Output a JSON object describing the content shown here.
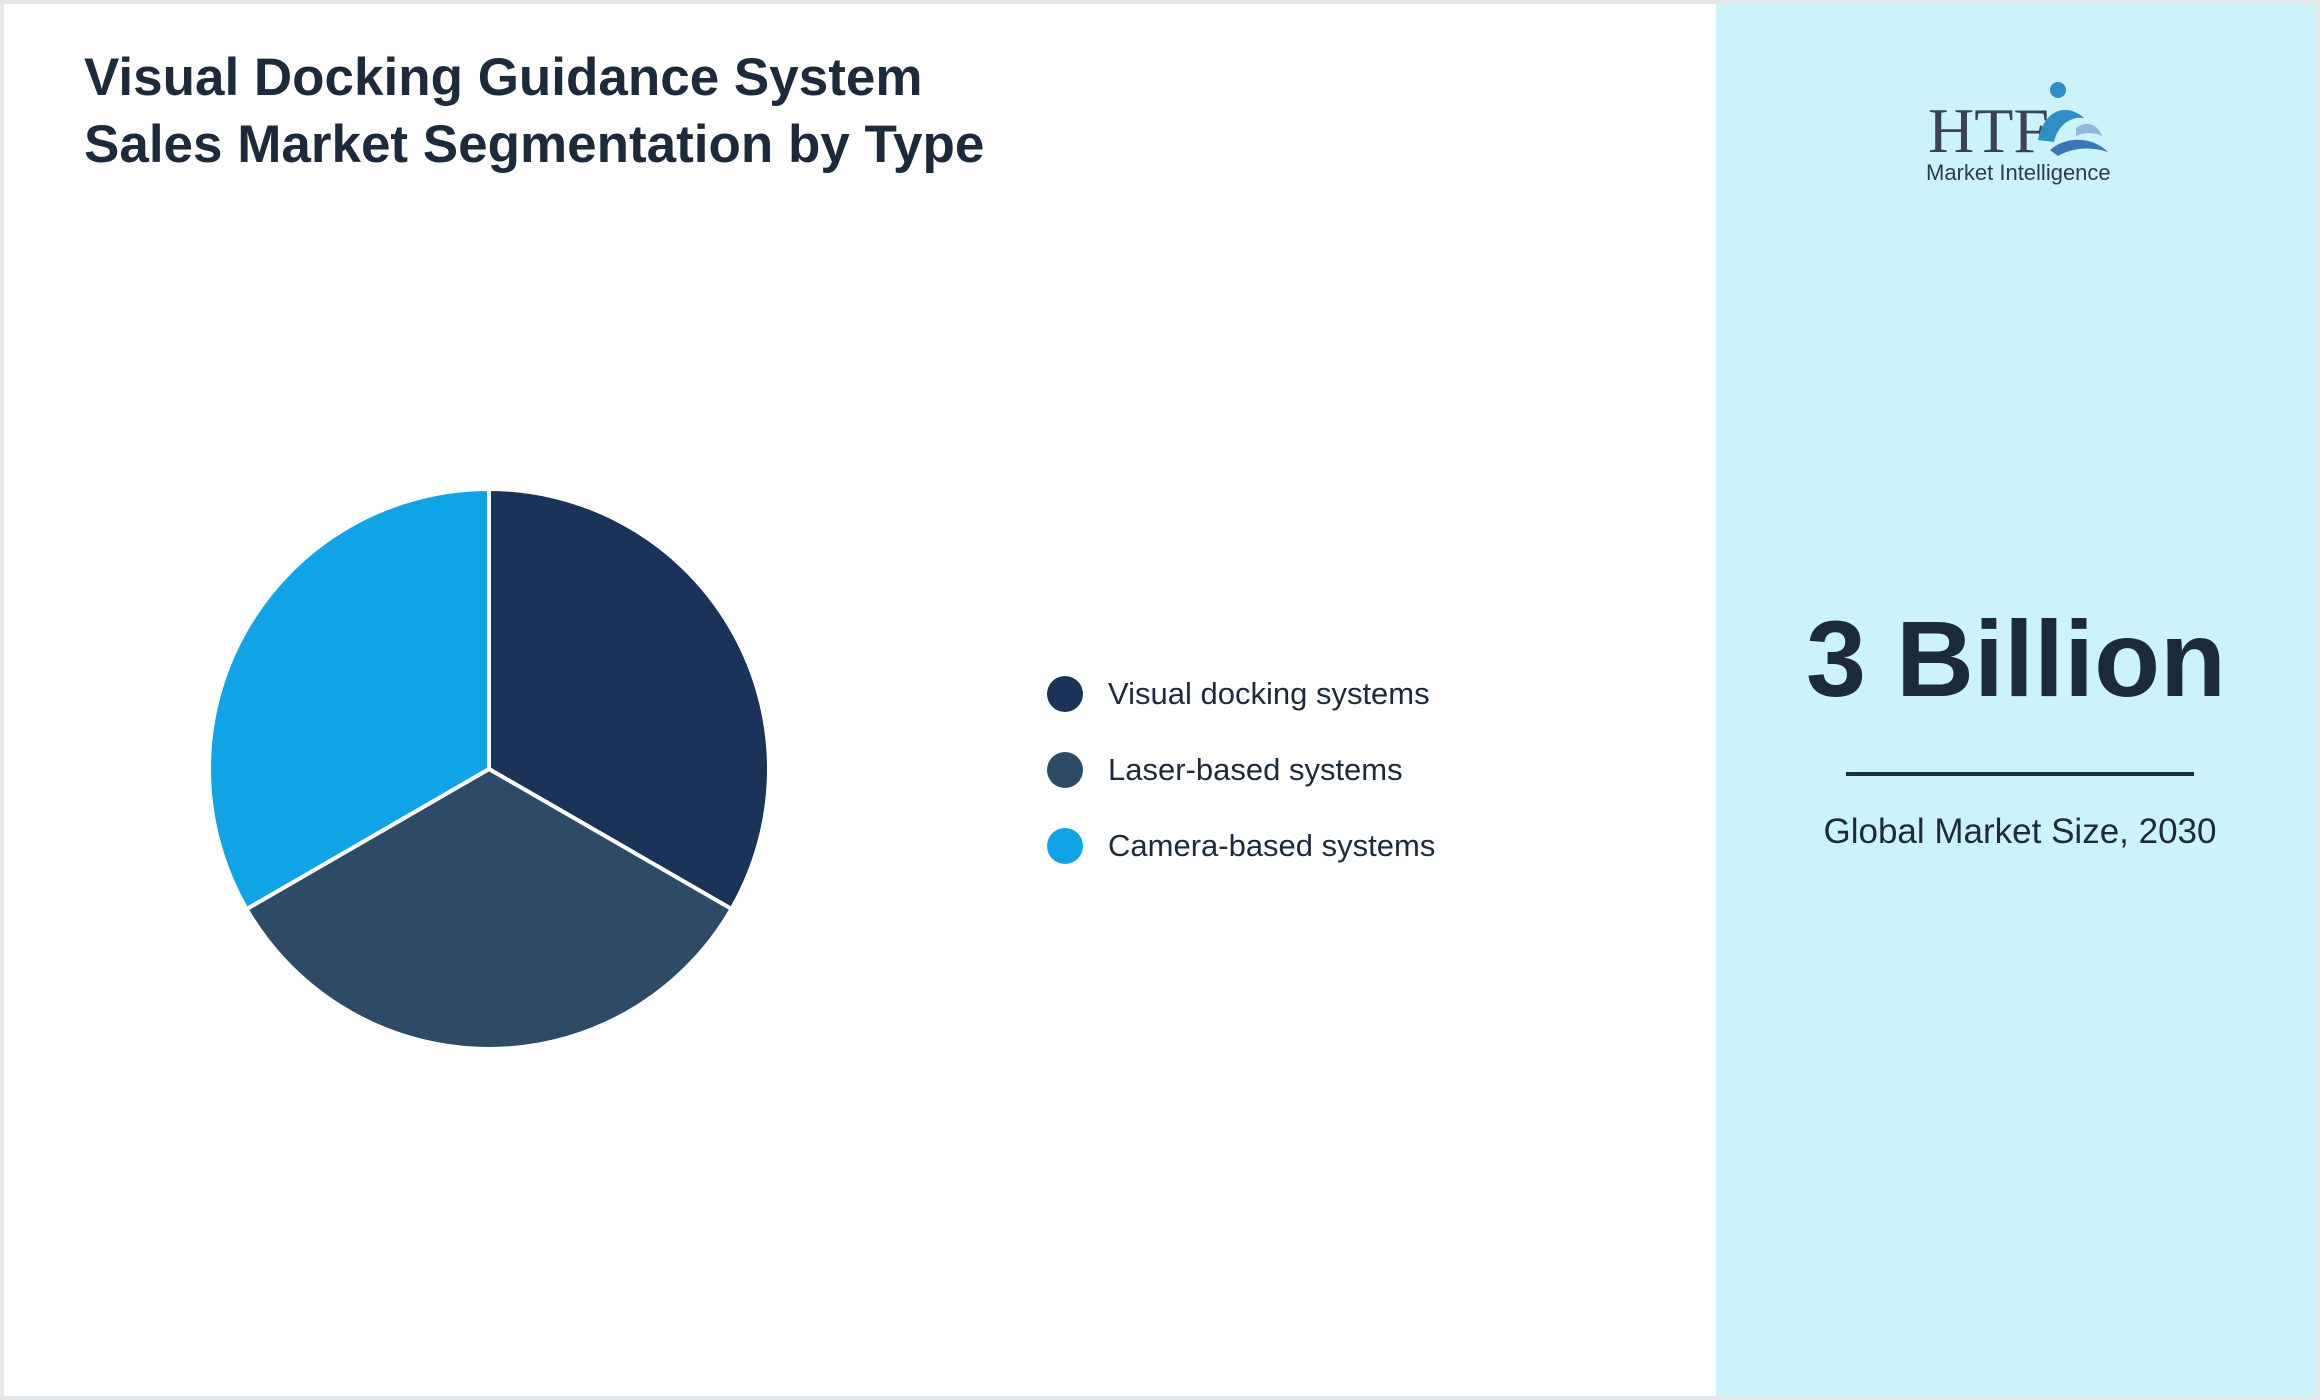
{
  "title": "Visual Docking Guidance System Sales Market Segmentation by Type",
  "logo": {
    "mark_text": "HTF",
    "subtitle": "Market Intelligence"
  },
  "market_value": {
    "value": "3 Billion",
    "caption": "Global Market Size, 2030"
  },
  "colors": {
    "accent_panel": "#cdf3fa",
    "text": "#1d2a3b"
  },
  "chart_data": {
    "type": "pie",
    "categories": [
      "Visual docking systems",
      "Laser-based systems",
      "Camera-based systems"
    ],
    "values": [
      33.33,
      33.33,
      33.34
    ],
    "colors": [
      "#1b3358",
      "#2d4a66",
      "#10a3e5"
    ],
    "start_angle_deg": 0,
    "direction": "clockwise",
    "legend_position": "right"
  }
}
